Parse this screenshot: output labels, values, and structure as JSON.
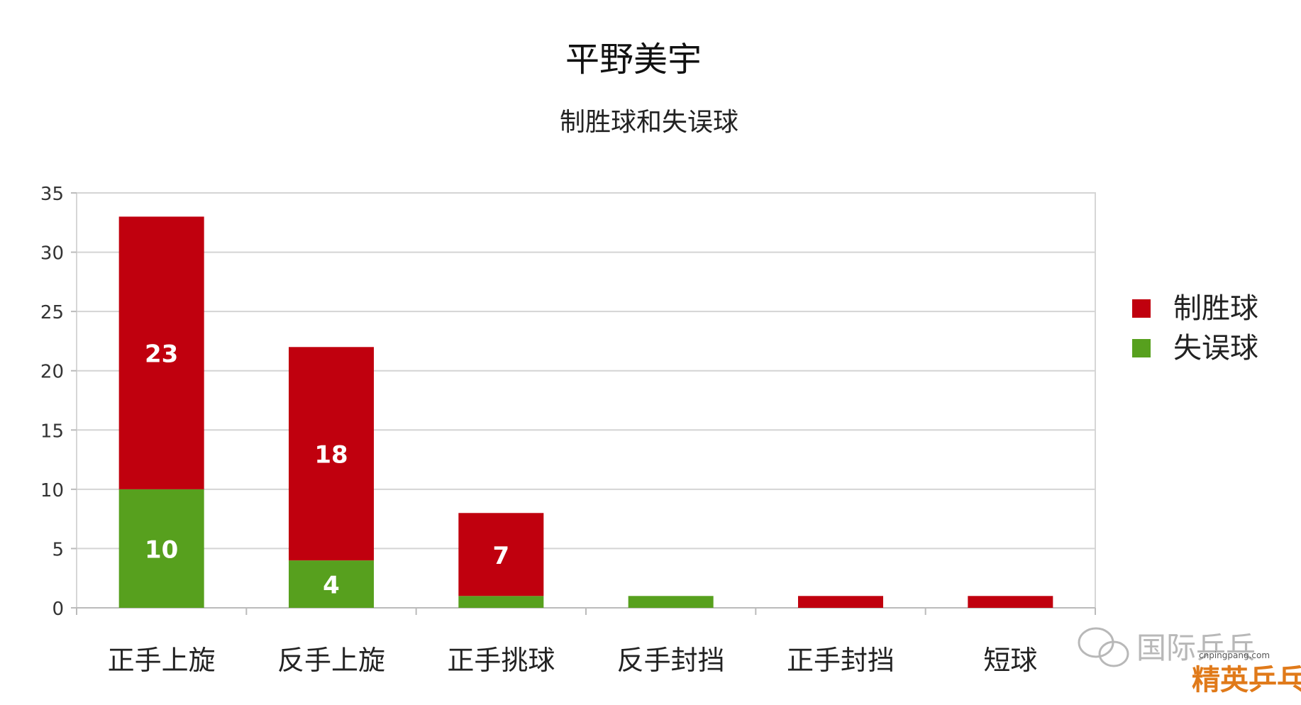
{
  "chart_data": {
    "type": "bar",
    "stacked": true,
    "title": "平野美宇",
    "subtitle": "制胜球和失误球",
    "categories": [
      "正手上旋",
      "反手上旋",
      "正手挑球",
      "反手封挡",
      "正手封挡",
      "短球"
    ],
    "series": [
      {
        "name": "制胜球",
        "color": "#c0000e",
        "values": [
          23,
          18,
          7,
          0,
          1,
          1
        ],
        "labels": [
          "23",
          "18",
          "7",
          "",
          "",
          ""
        ]
      },
      {
        "name": "失误球",
        "color": "#57a01e",
        "values": [
          10,
          4,
          1,
          1,
          0,
          0
        ],
        "labels": [
          "10",
          "4",
          "",
          "",
          "",
          ""
        ]
      }
    ],
    "stack_order": [
      "失误球",
      "制胜球"
    ],
    "yticks": [
      "0",
      "5",
      "10",
      "15",
      "20",
      "25",
      "30",
      "35"
    ],
    "ylim": [
      0,
      35
    ],
    "grid": true,
    "legend_position": "right"
  },
  "watermark": {
    "text": "国际乒乓",
    "logo_text": "精英乒乓网",
    "site": "cnpingpang.com"
  }
}
